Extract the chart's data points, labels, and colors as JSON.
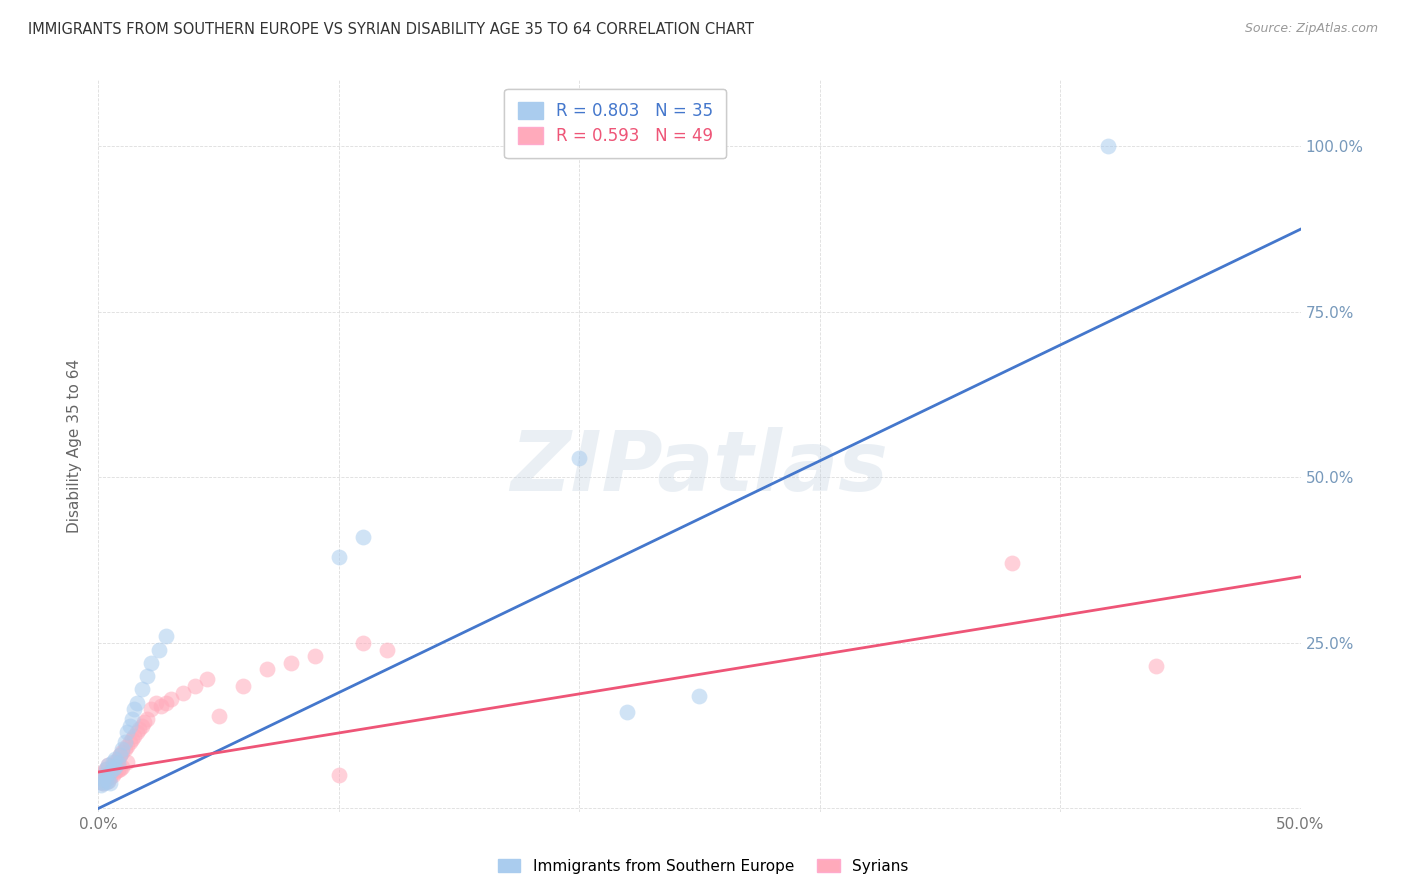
{
  "title": "IMMIGRANTS FROM SOUTHERN EUROPE VS SYRIAN DISABILITY AGE 35 TO 64 CORRELATION CHART",
  "source": "Source: ZipAtlas.com",
  "ylabel": "Disability Age 35 to 64",
  "legend_label1": "Immigrants from Southern Europe",
  "legend_label2": "Syrians",
  "blue_R": 0.803,
  "blue_N": 35,
  "pink_R": 0.593,
  "pink_N": 49,
  "blue_color": "#AACCEE",
  "pink_color": "#FFAABB",
  "blue_line_color": "#4477CC",
  "pink_line_color": "#EE5577",
  "xlim": [
    0.0,
    0.5
  ],
  "ylim": [
    -0.005,
    1.1
  ],
  "yticks": [
    0.0,
    0.25,
    0.5,
    0.75,
    1.0
  ],
  "ytick_labels": [
    "",
    "25.0%",
    "50.0%",
    "75.0%",
    "100.0%"
  ],
  "xticks": [
    0.0,
    0.1,
    0.2,
    0.3,
    0.4,
    0.5
  ],
  "xtick_labels": [
    "0.0%",
    "",
    "",
    "",
    "",
    "50.0%"
  ],
  "watermark": "ZIPatlas",
  "blue_points_x": [
    0.001,
    0.001,
    0.002,
    0.002,
    0.003,
    0.003,
    0.003,
    0.004,
    0.004,
    0.005,
    0.005,
    0.006,
    0.006,
    0.007,
    0.007,
    0.008,
    0.009,
    0.01,
    0.011,
    0.012,
    0.013,
    0.014,
    0.015,
    0.016,
    0.018,
    0.02,
    0.022,
    0.025,
    0.028,
    0.1,
    0.11,
    0.2,
    0.22,
    0.25,
    0.42
  ],
  "blue_points_y": [
    0.035,
    0.04,
    0.038,
    0.045,
    0.04,
    0.05,
    0.06,
    0.042,
    0.065,
    0.038,
    0.055,
    0.06,
    0.07,
    0.062,
    0.075,
    0.068,
    0.08,
    0.09,
    0.1,
    0.115,
    0.125,
    0.135,
    0.15,
    0.16,
    0.18,
    0.2,
    0.22,
    0.24,
    0.26,
    0.38,
    0.41,
    0.53,
    0.145,
    0.17,
    1.0
  ],
  "pink_points_x": [
    0.001,
    0.001,
    0.002,
    0.002,
    0.003,
    0.003,
    0.004,
    0.004,
    0.005,
    0.005,
    0.006,
    0.006,
    0.007,
    0.007,
    0.008,
    0.008,
    0.009,
    0.009,
    0.01,
    0.01,
    0.011,
    0.012,
    0.012,
    0.013,
    0.014,
    0.015,
    0.016,
    0.017,
    0.018,
    0.019,
    0.02,
    0.022,
    0.024,
    0.026,
    0.028,
    0.03,
    0.035,
    0.04,
    0.045,
    0.05,
    0.06,
    0.07,
    0.08,
    0.09,
    0.1,
    0.11,
    0.12,
    0.38,
    0.44
  ],
  "pink_points_y": [
    0.04,
    0.05,
    0.038,
    0.055,
    0.045,
    0.06,
    0.042,
    0.065,
    0.048,
    0.055,
    0.05,
    0.065,
    0.055,
    0.07,
    0.058,
    0.075,
    0.06,
    0.08,
    0.062,
    0.085,
    0.09,
    0.07,
    0.095,
    0.1,
    0.105,
    0.11,
    0.115,
    0.12,
    0.125,
    0.13,
    0.135,
    0.15,
    0.16,
    0.155,
    0.16,
    0.165,
    0.175,
    0.185,
    0.195,
    0.14,
    0.185,
    0.21,
    0.22,
    0.23,
    0.05,
    0.25,
    0.24,
    0.37,
    0.215
  ],
  "blue_line_x0": 0.0,
  "blue_line_y0": 0.0,
  "blue_line_x1": 0.5,
  "blue_line_y1": 0.875,
  "pink_line_x0": 0.0,
  "pink_line_y0": 0.055,
  "pink_line_x1": 0.5,
  "pink_line_y1": 0.35,
  "background_color": "#ffffff",
  "grid_color": "#dddddd",
  "title_color": "#333333",
  "right_ytick_color": "#7799BB"
}
